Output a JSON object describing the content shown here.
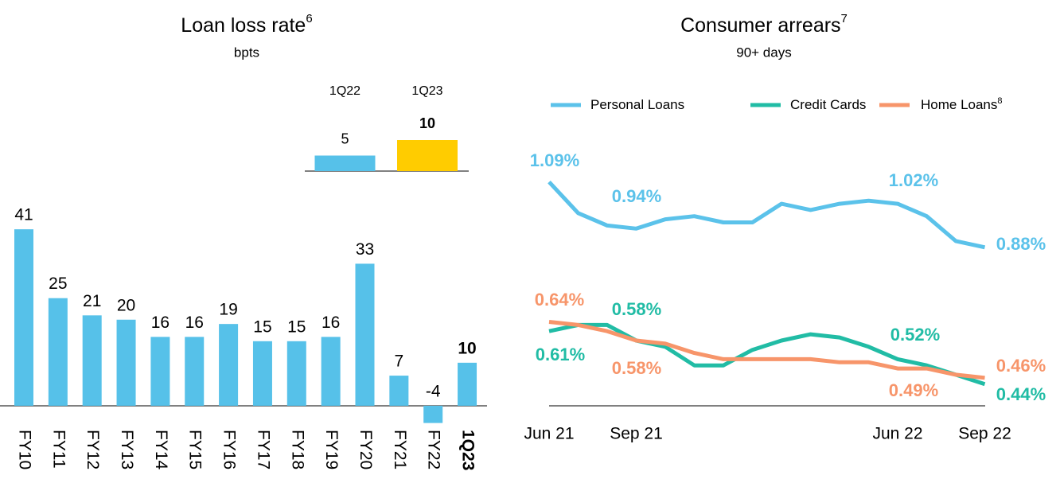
{
  "chart_data": [
    {
      "type": "bar",
      "title": "Loan loss rate",
      "title_superscript": "6",
      "subtitle": "bpts",
      "categories": [
        "FY10",
        "FY11",
        "FY12",
        "FY13",
        "FY14",
        "FY15",
        "FY16",
        "FY17",
        "FY18",
        "FY19",
        "FY20",
        "FY21",
        "FY22",
        "1Q23"
      ],
      "values": [
        41,
        25,
        21,
        20,
        16,
        16,
        19,
        15,
        15,
        16,
        33,
        7,
        -4,
        10
      ],
      "color": "#56c1e9",
      "ylim": [
        -5,
        45
      ]
    },
    {
      "type": "bar",
      "categories": [
        "1Q22",
        "1Q23"
      ],
      "values": [
        5,
        10
      ],
      "colors": [
        "#56c1e9",
        "#ffcc00"
      ],
      "ylim": [
        0,
        10
      ]
    },
    {
      "type": "line",
      "title": "Consumer arrears",
      "title_superscript": "7",
      "subtitle": "90+ days",
      "categories": [
        "Jun 21",
        null,
        null,
        "Sep 21",
        null,
        null,
        null,
        null,
        null,
        null,
        null,
        null,
        "Jun 22",
        null,
        null,
        "Sep 22"
      ],
      "ylim": [
        0.37,
        1.12
      ],
      "series": [
        {
          "name": "Personal Loans",
          "color": "#5bc2ea",
          "values": [
            1.09,
            0.99,
            0.95,
            0.94,
            0.97,
            0.98,
            0.96,
            0.96,
            1.02,
            1.0,
            1.02,
            1.03,
            1.02,
            0.98,
            0.9,
            0.88
          ],
          "value_labels": [
            "1.09%",
            null,
            null,
            "0.94%",
            null,
            null,
            null,
            null,
            null,
            null,
            null,
            null,
            "1.02%",
            null,
            null,
            "0.88%"
          ]
        },
        {
          "name": "Credit Cards",
          "color": "#21bca5",
          "values": [
            0.61,
            0.63,
            0.63,
            0.58,
            0.56,
            0.5,
            0.5,
            0.55,
            0.58,
            0.6,
            0.59,
            0.56,
            0.52,
            0.5,
            0.47,
            0.44
          ],
          "value_labels": [
            "0.61%",
            null,
            null,
            "0.58%",
            null,
            null,
            null,
            null,
            null,
            null,
            null,
            null,
            "0.52%",
            null,
            null,
            "0.44%"
          ]
        },
        {
          "name": "Home Loans",
          "superscript": "8",
          "color": "#f7956a",
          "values": [
            0.64,
            0.63,
            0.61,
            0.58,
            0.57,
            0.54,
            0.52,
            0.52,
            0.52,
            0.52,
            0.51,
            0.51,
            0.49,
            0.49,
            0.47,
            0.46
          ],
          "value_labels": [
            "0.64%",
            null,
            null,
            "0.58%",
            null,
            null,
            null,
            null,
            null,
            null,
            null,
            null,
            "0.49%",
            null,
            null,
            "0.46%"
          ]
        }
      ]
    }
  ]
}
